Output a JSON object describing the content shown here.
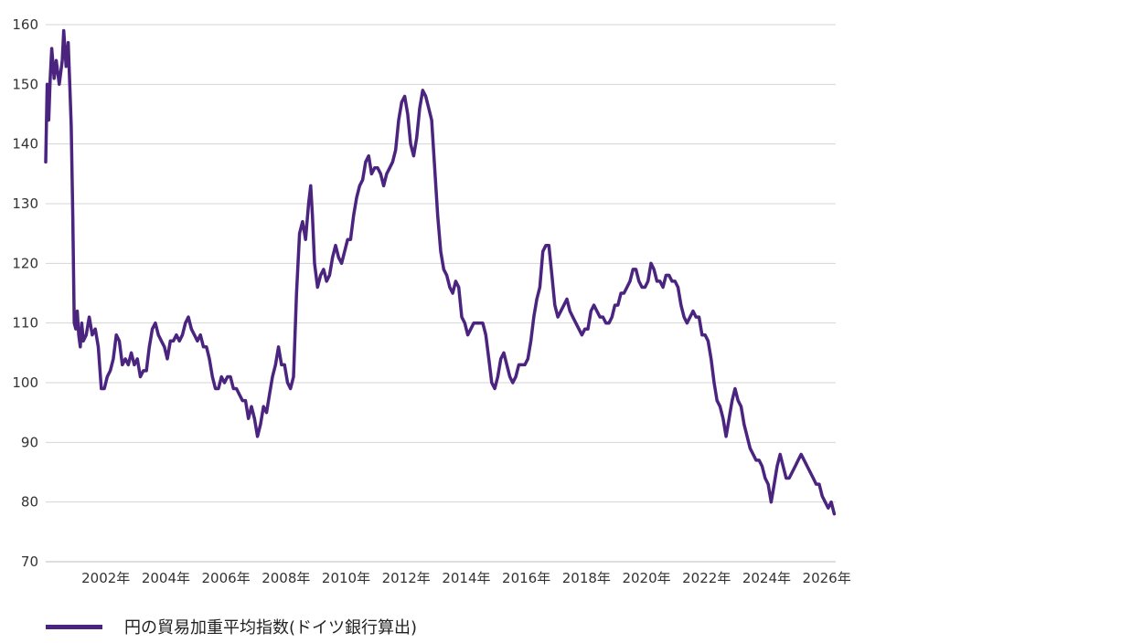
{
  "chart_data": {
    "type": "line",
    "title": "",
    "xlabel": "",
    "ylabel": "",
    "ylim": [
      70,
      160
    ],
    "xlim": [
      2000.0,
      2026.3
    ],
    "y_ticks": [
      "70",
      "80",
      "90",
      "100",
      "110",
      "120",
      "130",
      "140",
      "150",
      "160"
    ],
    "x_ticks": [
      {
        "year": 2002,
        "label": "2002年"
      },
      {
        "year": 2004,
        "label": "2004年"
      },
      {
        "year": 2006,
        "label": "2006年"
      },
      {
        "year": 2008,
        "label": "2008年"
      },
      {
        "year": 2010,
        "label": "2010年"
      },
      {
        "year": 2012,
        "label": "2012年"
      },
      {
        "year": 2014,
        "label": "2014年"
      },
      {
        "year": 2016,
        "label": "2016年"
      },
      {
        "year": 2018,
        "label": "2018年"
      },
      {
        "year": 2020,
        "label": "2020年"
      },
      {
        "year": 2022,
        "label": "2022年"
      },
      {
        "year": 2024,
        "label": "2024年"
      },
      {
        "year": 2026,
        "label": "2026年"
      }
    ],
    "grid": true,
    "legend_position": "bottom-left",
    "series": [
      {
        "name": "円の貿易加重平均指数(ドイツ銀行算出)",
        "color": "#4b2480",
        "x": [
          2000.0,
          2000.05,
          2000.1,
          2000.15,
          2000.2,
          2000.28,
          2000.35,
          2000.45,
          2000.55,
          2000.6,
          2000.68,
          2000.75,
          2000.8,
          2000.85,
          2000.9,
          2000.95,
          2001.0,
          2001.05,
          2001.1,
          2001.15,
          2001.2,
          2001.25,
          2001.35,
          2001.45,
          2001.55,
          2001.65,
          2001.75,
          2001.85,
          2001.95,
          2002.05,
          2002.15,
          2002.25,
          2002.35,
          2002.45,
          2002.55,
          2002.65,
          2002.75,
          2002.85,
          2002.95,
          2003.05,
          2003.15,
          2003.25,
          2003.35,
          2003.45,
          2003.55,
          2003.65,
          2003.75,
          2003.85,
          2003.95,
          2004.05,
          2004.15,
          2004.25,
          2004.35,
          2004.45,
          2004.55,
          2004.65,
          2004.75,
          2004.85,
          2004.95,
          2005.05,
          2005.15,
          2005.25,
          2005.35,
          2005.45,
          2005.55,
          2005.65,
          2005.75,
          2005.85,
          2005.95,
          2006.05,
          2006.15,
          2006.25,
          2006.35,
          2006.45,
          2006.55,
          2006.65,
          2006.75,
          2006.85,
          2006.95,
          2007.05,
          2007.15,
          2007.25,
          2007.35,
          2007.45,
          2007.55,
          2007.65,
          2007.75,
          2007.85,
          2007.95,
          2008.05,
          2008.15,
          2008.25,
          2008.35,
          2008.45,
          2008.55,
          2008.65,
          2008.75,
          2008.82,
          2008.88,
          2008.95,
          2009.05,
          2009.15,
          2009.25,
          2009.35,
          2009.45,
          2009.55,
          2009.65,
          2009.75,
          2009.85,
          2009.95,
          2010.05,
          2010.15,
          2010.25,
          2010.35,
          2010.45,
          2010.55,
          2010.65,
          2010.75,
          2010.85,
          2010.95,
          2011.05,
          2011.15,
          2011.25,
          2011.35,
          2011.45,
          2011.55,
          2011.65,
          2011.75,
          2011.85,
          2011.95,
          2012.05,
          2012.15,
          2012.25,
          2012.35,
          2012.45,
          2012.55,
          2012.65,
          2012.75,
          2012.85,
          2012.95,
          2013.05,
          2013.15,
          2013.25,
          2013.35,
          2013.45,
          2013.55,
          2013.65,
          2013.75,
          2013.85,
          2013.95,
          2014.05,
          2014.15,
          2014.25,
          2014.35,
          2014.45,
          2014.55,
          2014.65,
          2014.75,
          2014.85,
          2014.95,
          2015.05,
          2015.15,
          2015.25,
          2015.35,
          2015.45,
          2015.55,
          2015.65,
          2015.75,
          2015.85,
          2015.95,
          2016.05,
          2016.15,
          2016.25,
          2016.35,
          2016.45,
          2016.55,
          2016.65,
          2016.75,
          2016.85,
          2016.95,
          2017.05,
          2017.15,
          2017.25,
          2017.35,
          2017.45,
          2017.55,
          2017.65,
          2017.75,
          2017.85,
          2017.95,
          2018.05,
          2018.15,
          2018.25,
          2018.35,
          2018.45,
          2018.55,
          2018.65,
          2018.75,
          2018.85,
          2018.95,
          2019.05,
          2019.15,
          2019.25,
          2019.35,
          2019.45,
          2019.55,
          2019.65,
          2019.75,
          2019.85,
          2019.95,
          2020.05,
          2020.15,
          2020.25,
          2020.35,
          2020.45,
          2020.55,
          2020.65,
          2020.75,
          2020.85,
          2020.95,
          2021.05,
          2021.15,
          2021.25,
          2021.35,
          2021.45,
          2021.55,
          2021.65,
          2021.75,
          2021.85,
          2021.95,
          2022.05,
          2022.15,
          2022.25,
          2022.35,
          2022.45,
          2022.55,
          2022.65,
          2022.75,
          2022.85,
          2022.95,
          2023.05,
          2023.15,
          2023.25,
          2023.35,
          2023.45,
          2023.55,
          2023.65,
          2023.75,
          2023.85,
          2023.95,
          2024.05,
          2024.15,
          2024.25,
          2024.35,
          2024.45,
          2024.55,
          2024.65,
          2024.75,
          2024.85,
          2024.95,
          2025.05,
          2025.15,
          2025.25,
          2025.35,
          2025.45,
          2025.55,
          2025.65,
          2025.75,
          2025.85,
          2025.95,
          2026.05,
          2026.15,
          2026.25
        ],
        "y": [
          137,
          150,
          144,
          151,
          156,
          151,
          154,
          150,
          154,
          159,
          153,
          157,
          150,
          143,
          128,
          110,
          109,
          112,
          108,
          106,
          110,
          107,
          108,
          111,
          108,
          109,
          106,
          99,
          99,
          101,
          102,
          104,
          108,
          107,
          103,
          104,
          103,
          105,
          103,
          104,
          101,
          102,
          102,
          106,
          109,
          110,
          108,
          107,
          106,
          104,
          107,
          107,
          108,
          107,
          108,
          110,
          111,
          109,
          108,
          107,
          108,
          106,
          106,
          104,
          101,
          99,
          99,
          101,
          100,
          101,
          101,
          99,
          99,
          98,
          97,
          97,
          94,
          96,
          94,
          91,
          93,
          96,
          95,
          98,
          101,
          103,
          106,
          103,
          103,
          100,
          99,
          101,
          115,
          125,
          127,
          124,
          130,
          133,
          128,
          120,
          116,
          118,
          119,
          117,
          118,
          121,
          123,
          121,
          120,
          122,
          124,
          124,
          128,
          131,
          133,
          134,
          137,
          138,
          135,
          136,
          136,
          135,
          133,
          135,
          136,
          137,
          139,
          144,
          147,
          148,
          145,
          140,
          138,
          141,
          146,
          149,
          148,
          146,
          144,
          136,
          128,
          122,
          119,
          118,
          116,
          115,
          117,
          116,
          111,
          110,
          108,
          109,
          110,
          110,
          110,
          110,
          108,
          104,
          100,
          99,
          101,
          104,
          105,
          103,
          101,
          100,
          101,
          103,
          103,
          103,
          104,
          107,
          111,
          114,
          116,
          122,
          123,
          123,
          118,
          113,
          111,
          112,
          113,
          114,
          112,
          111,
          110,
          109,
          108,
          109,
          109,
          112,
          113,
          112,
          111,
          111,
          110,
          110,
          111,
          113,
          113,
          115,
          115,
          116,
          117,
          119,
          119,
          117,
          116,
          116,
          117,
          120,
          119,
          117,
          117,
          116,
          118,
          118,
          117,
          117,
          116,
          113,
          111,
          110,
          111,
          112,
          111,
          111,
          108,
          108,
          107,
          104,
          100,
          97,
          96,
          94,
          91,
          94,
          97,
          99,
          97,
          96,
          93,
          91,
          89,
          88,
          87,
          87,
          86,
          84,
          83,
          80,
          83,
          86,
          88,
          86,
          84,
          84,
          85,
          86,
          87,
          88,
          87,
          86,
          85,
          84,
          83,
          83,
          81,
          80,
          79,
          80,
          78
        ]
      }
    ]
  },
  "legend": {
    "label": "円の貿易加重平均指数(ドイツ銀行算出)",
    "color": "#4b2480"
  }
}
